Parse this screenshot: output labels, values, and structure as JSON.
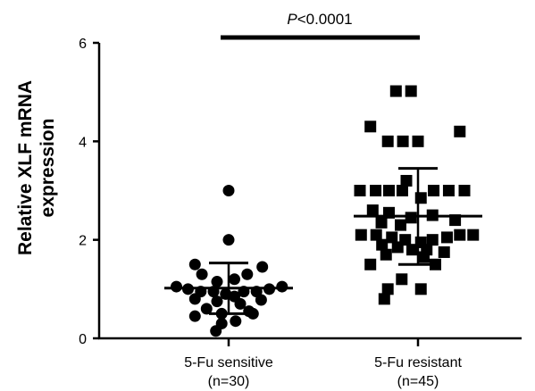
{
  "chart_data": {
    "type": "scatter",
    "title": "",
    "ylabel_line1": "Relative XLF mRNA",
    "ylabel_line2": "expression",
    "ylim": [
      0,
      6
    ],
    "yticks": [
      "0",
      "2",
      "4",
      "6"
    ],
    "grid": false,
    "legend": "none",
    "categories": [
      {
        "name": "5-Fu sensitive",
        "n_label": "(n=30)"
      },
      {
        "name": "5-Fu resistant",
        "n_label": "(n=45)"
      }
    ],
    "series": [
      {
        "marker": "circle",
        "mean": 1.02,
        "sd_upper": 1.53,
        "sd_lower": 0.5,
        "points": [
          {
            "y": 3.0,
            "j": 0.0
          },
          {
            "y": 2.0,
            "j": 0.0
          },
          {
            "y": 1.5,
            "j": -0.58
          },
          {
            "y": 1.45,
            "j": 0.58
          },
          {
            "y": 1.3,
            "j": -0.46
          },
          {
            "y": 1.3,
            "j": 0.32
          },
          {
            "y": 1.2,
            "j": 0.1
          },
          {
            "y": 1.15,
            "j": -0.2
          },
          {
            "y": 1.05,
            "j": -0.9
          },
          {
            "y": 1.05,
            "j": 0.92
          },
          {
            "y": 1.0,
            "j": -0.7
          },
          {
            "y": 1.0,
            "j": 0.7
          },
          {
            "y": 0.95,
            "j": -0.48
          },
          {
            "y": 0.95,
            "j": 0.48
          },
          {
            "y": 0.95,
            "j": -0.26
          },
          {
            "y": 0.95,
            "j": 0.26
          },
          {
            "y": 0.9,
            "j": -0.05
          },
          {
            "y": 0.85,
            "j": 0.1
          },
          {
            "y": 0.8,
            "j": -0.58
          },
          {
            "y": 0.78,
            "j": 0.56
          },
          {
            "y": 0.75,
            "j": -0.2
          },
          {
            "y": 0.7,
            "j": 0.2
          },
          {
            "y": 0.6,
            "j": -0.38
          },
          {
            "y": 0.55,
            "j": 0.35
          },
          {
            "y": 0.5,
            "j": -0.12
          },
          {
            "y": 0.5,
            "j": 0.42
          },
          {
            "y": 0.45,
            "j": -0.58
          },
          {
            "y": 0.35,
            "j": 0.12
          },
          {
            "y": 0.3,
            "j": -0.12
          },
          {
            "y": 0.15,
            "j": -0.22
          }
        ]
      },
      {
        "marker": "square",
        "mean": 2.48,
        "sd_upper": 3.45,
        "sd_lower": 1.5,
        "points": [
          {
            "y": 5.02,
            "j": -0.38
          },
          {
            "y": 5.02,
            "j": -0.12
          },
          {
            "y": 4.3,
            "j": -0.82
          },
          {
            "y": 4.2,
            "j": 0.72
          },
          {
            "y": 4.0,
            "j": -0.52
          },
          {
            "y": 4.0,
            "j": -0.26
          },
          {
            "y": 4.0,
            "j": 0.0
          },
          {
            "y": 3.2,
            "j": -0.2
          },
          {
            "y": 3.0,
            "j": -1.0
          },
          {
            "y": 3.0,
            "j": -0.73
          },
          {
            "y": 3.0,
            "j": -0.5
          },
          {
            "y": 3.0,
            "j": -0.27
          },
          {
            "y": 3.0,
            "j": 0.27
          },
          {
            "y": 3.0,
            "j": 0.53
          },
          {
            "y": 3.0,
            "j": 0.8
          },
          {
            "y": 2.85,
            "j": 0.05
          },
          {
            "y": 2.6,
            "j": -0.78
          },
          {
            "y": 2.55,
            "j": -0.5
          },
          {
            "y": 2.5,
            "j": 0.25
          },
          {
            "y": 2.45,
            "j": -0.12
          },
          {
            "y": 2.4,
            "j": 0.64
          },
          {
            "y": 2.35,
            "j": -0.63
          },
          {
            "y": 2.3,
            "j": -0.3
          },
          {
            "y": 2.1,
            "j": -0.98
          },
          {
            "y": 2.1,
            "j": -0.72
          },
          {
            "y": 2.1,
            "j": 0.72
          },
          {
            "y": 2.1,
            "j": 0.95
          },
          {
            "y": 2.05,
            "j": -0.45
          },
          {
            "y": 2.05,
            "j": 0.5
          },
          {
            "y": 2.0,
            "j": -0.22
          },
          {
            "y": 2.0,
            "j": 0.25
          },
          {
            "y": 1.95,
            "j": 0.05
          },
          {
            "y": 1.9,
            "j": -0.62
          },
          {
            "y": 1.85,
            "j": -0.35
          },
          {
            "y": 1.8,
            "j": -0.1
          },
          {
            "y": 1.8,
            "j": 0.15
          },
          {
            "y": 1.75,
            "j": 0.45
          },
          {
            "y": 1.7,
            "j": -0.55
          },
          {
            "y": 1.65,
            "j": 0.1
          },
          {
            "y": 1.5,
            "j": -0.82
          },
          {
            "y": 1.5,
            "j": 0.3
          },
          {
            "y": 1.2,
            "j": -0.28
          },
          {
            "y": 1.0,
            "j": -0.52
          },
          {
            "y": 1.0,
            "j": 0.05
          },
          {
            "y": 0.8,
            "j": -0.58
          }
        ]
      }
    ],
    "significance": {
      "label_italic": "P",
      "label_rest": "<0.0001"
    }
  }
}
